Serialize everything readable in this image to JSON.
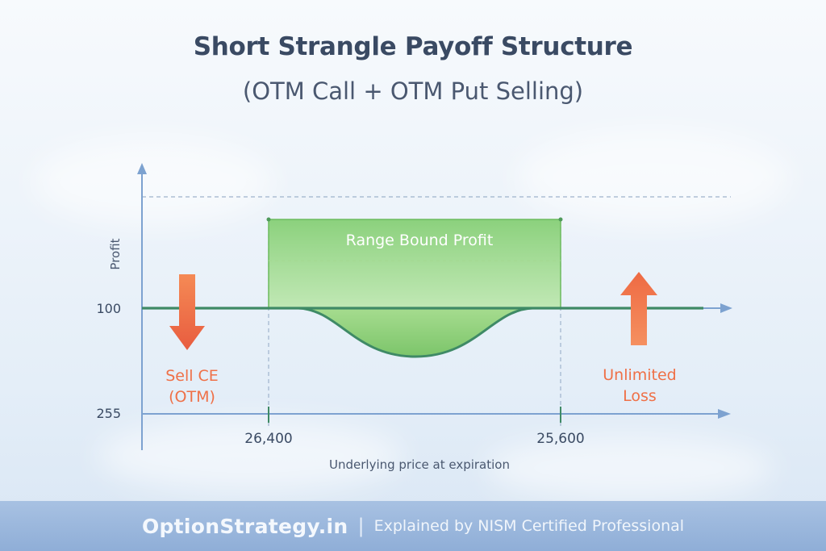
{
  "header": {
    "title": "Short Strangle Payoff Structure",
    "subtitle": "(OTM Call + OTM Put Selling)"
  },
  "chart": {
    "y_axis_label": "Profit",
    "x_axis_label": "Underlying price at expiration",
    "y_ticks": [
      "100",
      "255"
    ],
    "x_ticks": [
      "26,400",
      "25,600"
    ],
    "profit_zone_label": "Range Bound Profit",
    "left_annotation": {
      "line1": "Sell CE",
      "line2": "(OTM)"
    },
    "right_annotation": {
      "line1": "Unlimited",
      "line2": "Loss"
    }
  },
  "colors": {
    "title": "#3a4a63",
    "payoff_line": "#3f8a66",
    "profit_fill": "#8fd37e",
    "arrow": "#ef7047",
    "annotation_text": "#ef7047",
    "axis": "#7da2d0"
  },
  "footer": {
    "brand": "OptionStrategy.in",
    "separator": "|",
    "tagline": "Explained by NISM Certified Professional"
  }
}
